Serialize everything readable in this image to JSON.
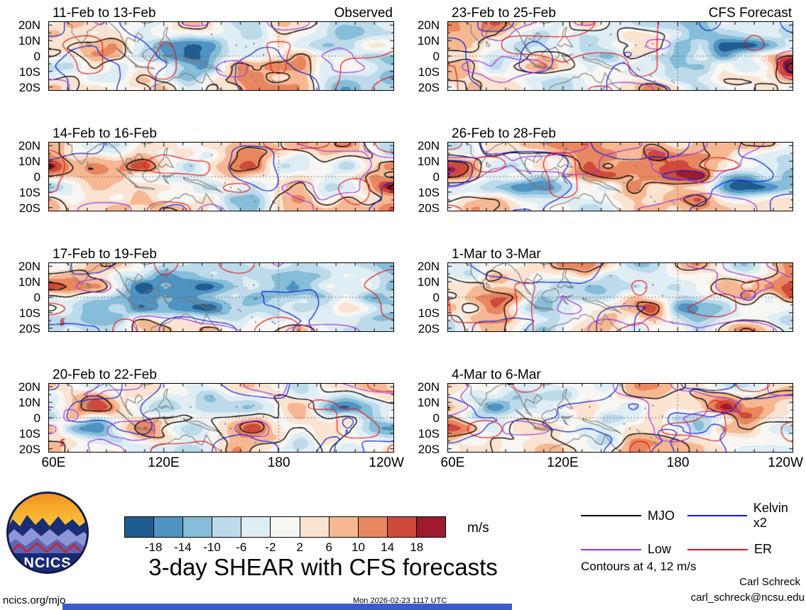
{
  "logo": {
    "text": "NCICS"
  },
  "chart_data": {
    "type": "heatmap",
    "title": "3-day SHEAR with CFS forecasts",
    "units": "m/s",
    "x": {
      "ticks": [
        "60E",
        "120E",
        "180",
        "120W"
      ],
      "tick_lons": [
        60,
        120,
        180,
        240
      ],
      "range_deg_east": [
        60,
        240
      ]
    },
    "y": {
      "ticks": [
        "20N",
        "10N",
        "0",
        "10S",
        "20S"
      ],
      "tick_lats": [
        20,
        10,
        0,
        -10,
        -20
      ],
      "range_deg_north": [
        -22,
        22
      ]
    },
    "color_levels": [
      -18,
      -14,
      -10,
      -6,
      -2,
      2,
      6,
      10,
      14,
      18
    ],
    "colors": [
      "#205c8f",
      "#4f93c3",
      "#86bdd8",
      "#bcdaea",
      "#dfedf4",
      "#f7f6f3",
      "#fae3d0",
      "#f5b893",
      "#e8875f",
      "#cf4a3b",
      "#9e1a2c"
    ],
    "contour_levels_ms": [
      4,
      12
    ],
    "overlay_series": [
      {
        "name": "MJO",
        "color": "#000000"
      },
      {
        "name": "Kelvin x2",
        "color": "#0018d6"
      },
      {
        "name": "Low",
        "color": "#9b2fe0"
      },
      {
        "name": "ER",
        "color": "#e31414"
      }
    ],
    "legend_note": "Contours at 4, 12 m/s",
    "panels": [
      {
        "title": "11-Feb to 13-Feb",
        "tag": "Observed"
      },
      {
        "title": "23-Feb to 25-Feb",
        "tag": "CFS Forecast"
      },
      {
        "title": "14-Feb to 16-Feb"
      },
      {
        "title": "26-Feb to 28-Feb"
      },
      {
        "title": "17-Feb to 19-Feb"
      },
      {
        "title": "1-Mar to 3-Mar"
      },
      {
        "title": "20-Feb to 22-Feb"
      },
      {
        "title": "4-Mar to 6-Mar"
      }
    ]
  },
  "footer": {
    "site": "ncics.org/mjo",
    "timestamp": "Mon 2026-02-23 1117 UTC",
    "credit_name": "Carl Schreck",
    "credit_email": "carl_schreck@ncsu.edu"
  }
}
